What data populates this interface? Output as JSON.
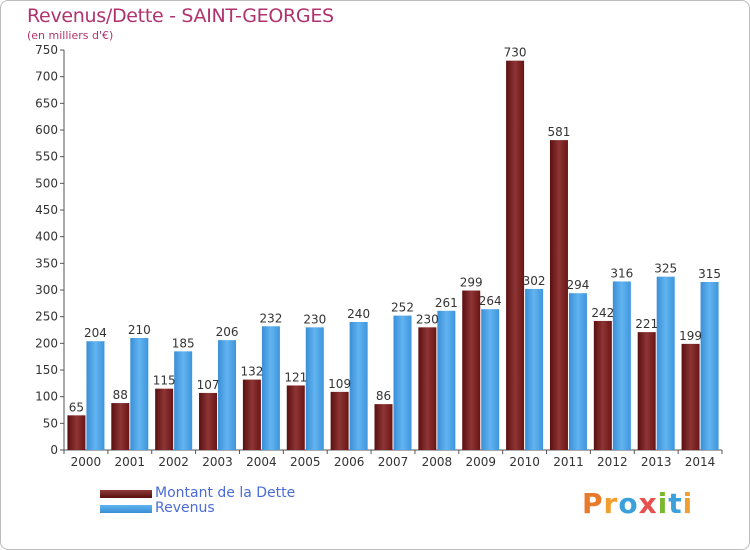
{
  "title": "Revenus/Dette - SAINT-GEORGES",
  "subtitle": "(en milliers d'€)",
  "colors": {
    "dette": "#7a1a1a",
    "dette_light": "#8e3a3a",
    "revenus": "#3d95dc",
    "revenus_light": "#5cb0ee",
    "title": "#b0336e",
    "legend_text": "#4b6bd6"
  },
  "legend": {
    "dette_label": "Montant de la Dette",
    "revenus_label": "Revenus"
  },
  "logo": {
    "letters": [
      "P",
      "r",
      "o",
      "x",
      "i",
      "t",
      "i"
    ],
    "colors": [
      "#e87a2a",
      "#f0a030",
      "#3ca0dc",
      "#e85050",
      "#7ab830",
      "#3ca0dc",
      "#f0a030"
    ]
  },
  "chart_data": {
    "type": "bar",
    "title": "Revenus/Dette - SAINT-GEORGES",
    "ylabel": "(en milliers d'€)",
    "xlabel": "",
    "ylim": [
      0,
      750
    ],
    "yticks": [
      0,
      50,
      100,
      150,
      200,
      250,
      300,
      350,
      400,
      450,
      500,
      550,
      600,
      650,
      700,
      750
    ],
    "grid": false,
    "legend_position": "bottom-left",
    "categories": [
      "2000",
      "2001",
      "2002",
      "2003",
      "2004",
      "2005",
      "2006",
      "2007",
      "2008",
      "2009",
      "2010",
      "2011",
      "2012",
      "2013",
      "2014"
    ],
    "series": [
      {
        "name": "Montant de la Dette",
        "values": [
          65,
          88,
          115,
          107,
          132,
          121,
          109,
          86,
          230,
          299,
          730,
          581,
          242,
          221,
          199
        ]
      },
      {
        "name": "Revenus",
        "values": [
          204,
          210,
          185,
          206,
          232,
          230,
          240,
          252,
          261,
          264,
          302,
          294,
          316,
          325,
          315
        ]
      }
    ]
  }
}
